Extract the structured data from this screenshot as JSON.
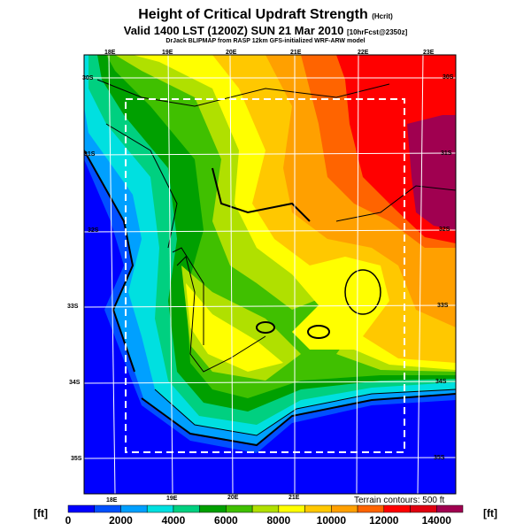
{
  "title": "Height of Critical Updraft Strength",
  "title_unit": "(Hcrit)",
  "valid_line": "Valid 1400 LST (1200Z) SUN 21 Mar 2010",
  "valid_suffix": "[10hrFcst@2350z]",
  "credit": "DrJack BLIPMAP from RASP 12km GFS-initialized WRF-ARW model",
  "top_lon_labels": [
    "18E",
    "19E",
    "20E",
    "21E",
    "22E",
    "23E"
  ],
  "bottom_lon_labels": [
    "18E",
    "19E",
    "20E",
    "21E"
  ],
  "left_lat_labels": [
    "30S",
    "31S",
    "32S",
    "33S",
    "34S",
    "35S"
  ],
  "right_lat_labels": [
    "30S",
    "31S",
    "32S",
    "33S",
    "34S",
    "35S"
  ],
  "terrain_note": "Terrain contours: 500 ft",
  "colorbar": {
    "unit_left": "[ft]",
    "unit_right": "[ft]",
    "tick_labels": [
      "0",
      "2000",
      "4000",
      "6000",
      "8000",
      "10000",
      "12000",
      "14000"
    ],
    "colors": [
      "#0000ff",
      "#0050ff",
      "#00a0ff",
      "#00e0e0",
      "#00d080",
      "#00a000",
      "#40c000",
      "#b0e000",
      "#ffff00",
      "#ffc800",
      "#ffa000",
      "#ff6400",
      "#ff0000",
      "#e00010",
      "#a00050"
    ],
    "min": 0,
    "max": 15000,
    "step": 1000
  }
}
